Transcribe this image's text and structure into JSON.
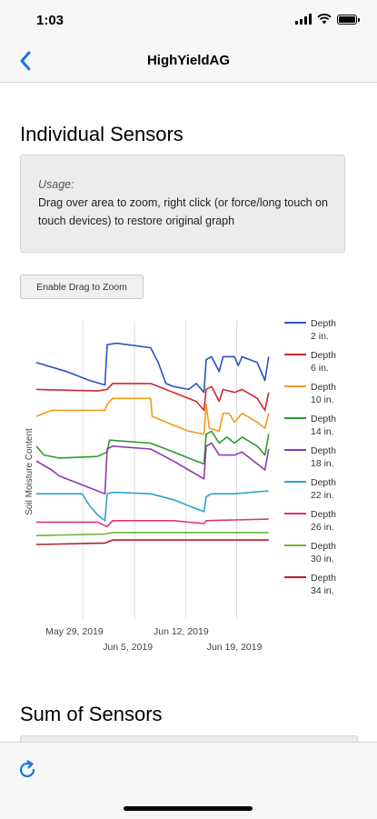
{
  "status_bar": {
    "time": "1:03"
  },
  "nav": {
    "title": "HighYieldAG"
  },
  "sections": {
    "individual_title": "Individual Sensors",
    "sum_title": "Sum of Sensors"
  },
  "usage": {
    "label": "Usage:",
    "text": "Drag over area to zoom, right click (or force/long touch on touch devices) to restore original graph"
  },
  "zoom_button": {
    "label": "Enable Drag to Zoom"
  },
  "chart_data": {
    "type": "line",
    "title": "",
    "ylabel": "Soil Moisture Content",
    "xlabel": "",
    "x_range": [
      "2019-05-24",
      "2019-06-24"
    ],
    "x_ticks": [
      "May 29, 2019",
      "Jun 5, 2019",
      "Jun 12, 2019",
      "Jun 19, 2019"
    ],
    "y_range": [
      0,
      100
    ],
    "grid": "vertical",
    "legend_position": "right",
    "series": [
      {
        "name": "Depth 2 in.",
        "color": "#2b52c4",
        "values": [
          [
            0,
            86
          ],
          [
            4,
            83
          ],
          [
            7,
            80
          ],
          [
            9,
            78.5
          ],
          [
            9.3,
            92
          ],
          [
            10.5,
            92.5
          ],
          [
            15,
            91
          ],
          [
            16,
            86
          ],
          [
            17,
            79
          ],
          [
            18,
            78
          ],
          [
            20,
            77
          ],
          [
            21,
            79
          ],
          [
            22,
            76
          ],
          [
            22.3,
            87
          ],
          [
            23,
            88
          ],
          [
            24,
            83
          ],
          [
            24.5,
            88
          ],
          [
            26,
            88
          ],
          [
            26.5,
            85
          ],
          [
            27,
            88
          ],
          [
            29,
            86
          ],
          [
            30,
            80
          ],
          [
            30.5,
            88
          ]
        ]
      },
      {
        "name": "Depth 6 in.",
        "color": "#d42a2a",
        "values": [
          [
            0,
            77
          ],
          [
            8,
            76.5
          ],
          [
            9.3,
            77
          ],
          [
            10,
            79
          ],
          [
            15,
            79
          ],
          [
            18,
            76
          ],
          [
            21,
            73
          ],
          [
            22,
            70
          ],
          [
            22.3,
            77
          ],
          [
            23,
            78
          ],
          [
            24,
            73
          ],
          [
            24.5,
            77
          ],
          [
            26,
            76
          ],
          [
            27,
            77
          ],
          [
            29,
            74
          ],
          [
            30,
            70
          ],
          [
            30.5,
            76
          ]
        ]
      },
      {
        "name": "Depth 10 in.",
        "color": "#f39a1a",
        "values": [
          [
            0,
            68
          ],
          [
            2,
            70
          ],
          [
            5,
            70
          ],
          [
            9,
            70
          ],
          [
            9.3,
            72
          ],
          [
            10,
            74
          ],
          [
            15,
            74
          ],
          [
            15.2,
            68
          ],
          [
            18,
            65
          ],
          [
            20,
            63
          ],
          [
            22,
            62
          ],
          [
            22.3,
            72
          ],
          [
            22.7,
            64
          ],
          [
            24,
            63
          ],
          [
            24.5,
            69
          ],
          [
            25.3,
            69
          ],
          [
            26,
            66
          ],
          [
            27,
            69
          ],
          [
            29,
            66
          ],
          [
            30,
            64
          ],
          [
            30.5,
            69
          ]
        ]
      },
      {
        "name": "Depth 14 in.",
        "color": "#2d9a2d",
        "values": [
          [
            0,
            58
          ],
          [
            1,
            55
          ],
          [
            3,
            54
          ],
          [
            8,
            54.5
          ],
          [
            9.3,
            56
          ],
          [
            9.6,
            60
          ],
          [
            15,
            59
          ],
          [
            18,
            56
          ],
          [
            21,
            53
          ],
          [
            22,
            52
          ],
          [
            22.3,
            62
          ],
          [
            23,
            63
          ],
          [
            24,
            59
          ],
          [
            25,
            61
          ],
          [
            26,
            59
          ],
          [
            27,
            61
          ],
          [
            29,
            58
          ],
          [
            30,
            55
          ],
          [
            30.5,
            62
          ]
        ]
      },
      {
        "name": "Depth 18 in.",
        "color": "#8e3ab0",
        "values": [
          [
            0,
            53
          ],
          [
            2,
            50
          ],
          [
            3,
            48
          ],
          [
            6,
            45
          ],
          [
            9,
            42
          ],
          [
            9.3,
            57
          ],
          [
            10,
            58
          ],
          [
            15,
            57
          ],
          [
            18,
            53
          ],
          [
            20,
            50
          ],
          [
            22,
            47
          ],
          [
            22.3,
            58
          ],
          [
            23,
            59
          ],
          [
            24,
            55
          ],
          [
            26,
            55
          ],
          [
            27,
            56
          ],
          [
            29,
            52
          ],
          [
            30,
            50
          ],
          [
            30.5,
            57
          ]
        ]
      },
      {
        "name": "Depth 22 in.",
        "color": "#2aa3d4",
        "values": [
          [
            0,
            42
          ],
          [
            6,
            42
          ],
          [
            7,
            38
          ],
          [
            8,
            35
          ],
          [
            9,
            33
          ],
          [
            9.3,
            42
          ],
          [
            10,
            42.5
          ],
          [
            15,
            42
          ],
          [
            18,
            40
          ],
          [
            20,
            38
          ],
          [
            21,
            37
          ],
          [
            22,
            36
          ],
          [
            22.3,
            41
          ],
          [
            23,
            42
          ],
          [
            26,
            42
          ],
          [
            30.5,
            43
          ]
        ]
      },
      {
        "name": "Depth 26 in.",
        "color": "#e0327a",
        "values": [
          [
            0,
            32.5
          ],
          [
            8,
            32.5
          ],
          [
            9.3,
            31
          ],
          [
            10,
            33
          ],
          [
            18,
            33
          ],
          [
            22,
            32
          ],
          [
            22.3,
            33
          ],
          [
            30.5,
            33.5
          ]
        ]
      },
      {
        "name": "Depth 30 in.",
        "color": "#6ab23a",
        "values": [
          [
            0,
            28
          ],
          [
            9,
            28.5
          ],
          [
            10,
            29
          ],
          [
            30.5,
            29
          ]
        ]
      },
      {
        "name": "Depth 34 in.",
        "color": "#b81c2e",
        "values": [
          [
            0,
            25
          ],
          [
            9,
            25.5
          ],
          [
            10,
            26.5
          ],
          [
            30.5,
            26.5
          ]
        ]
      }
    ]
  }
}
